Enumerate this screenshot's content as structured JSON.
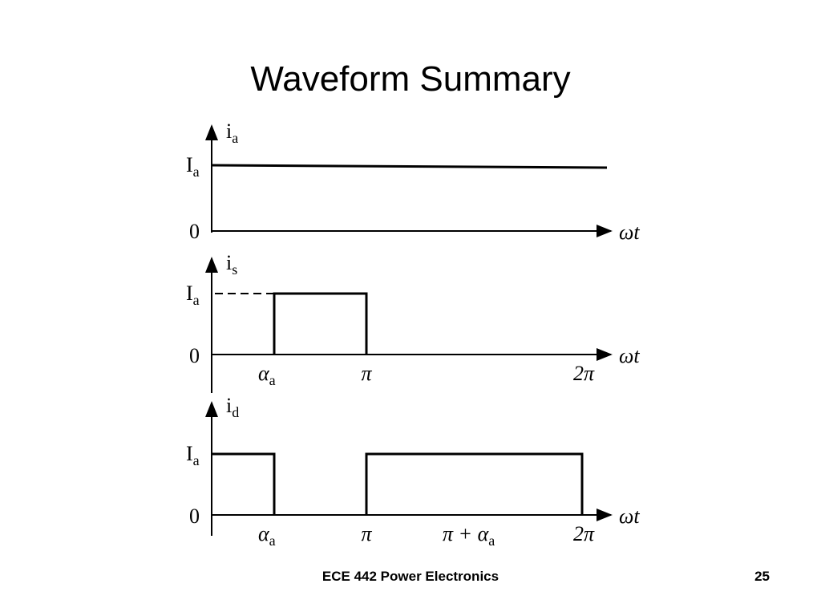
{
  "header": {
    "title": "Waveform Summary"
  },
  "panels": [
    {
      "signal": {
        "symbol": "i",
        "subscript": "a"
      },
      "level": {
        "symbol": "I",
        "subscript": "a"
      },
      "origin": "0",
      "axis": "ωt"
    },
    {
      "signal": {
        "symbol": "i",
        "subscript": "s"
      },
      "level": {
        "symbol": "I",
        "subscript": "a"
      },
      "origin": "0",
      "axis": "ωt",
      "ticks": [
        {
          "symbol": "α",
          "subscript": "a"
        },
        {
          "symbol": "π"
        },
        {
          "symbol": "2π"
        }
      ]
    },
    {
      "signal": {
        "symbol": "i",
        "subscript": "d"
      },
      "level": {
        "symbol": "I",
        "subscript": "a"
      },
      "origin": "0",
      "axis": "ωt",
      "ticks": [
        {
          "symbol": "α",
          "subscript": "a"
        },
        {
          "symbol": "π"
        },
        {
          "symbol": "π + α",
          "subscript": "a"
        },
        {
          "symbol": "2π"
        }
      ]
    }
  ],
  "footer": {
    "course": "ECE 442 Power Electronics",
    "page": "25"
  }
}
